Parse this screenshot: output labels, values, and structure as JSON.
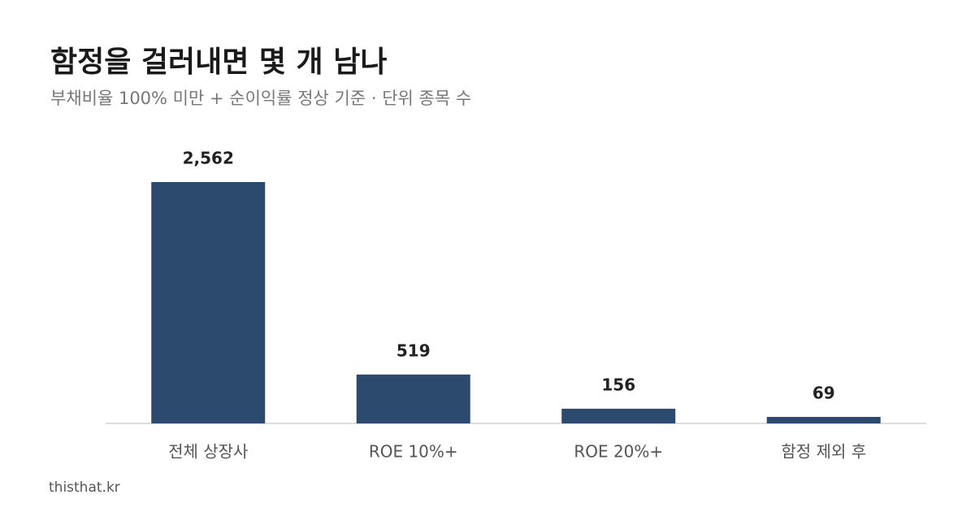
{
  "chart_data": {
    "type": "bar",
    "title": "함정을 걸러내면 몇 개 남나",
    "subtitle": "부채비율 100% 미만 + 순이익률 정상 기준 · 단위 종목 수",
    "categories": [
      "전체 상장사",
      "ROE 10%+",
      "ROE 20%+",
      "함정 제외 후"
    ],
    "values": [
      2562,
      519,
      156,
      69
    ],
    "value_labels": [
      "2,562",
      "519",
      "156",
      "69"
    ],
    "color": "#2c4a6e",
    "source": "thisthat.kr"
  }
}
